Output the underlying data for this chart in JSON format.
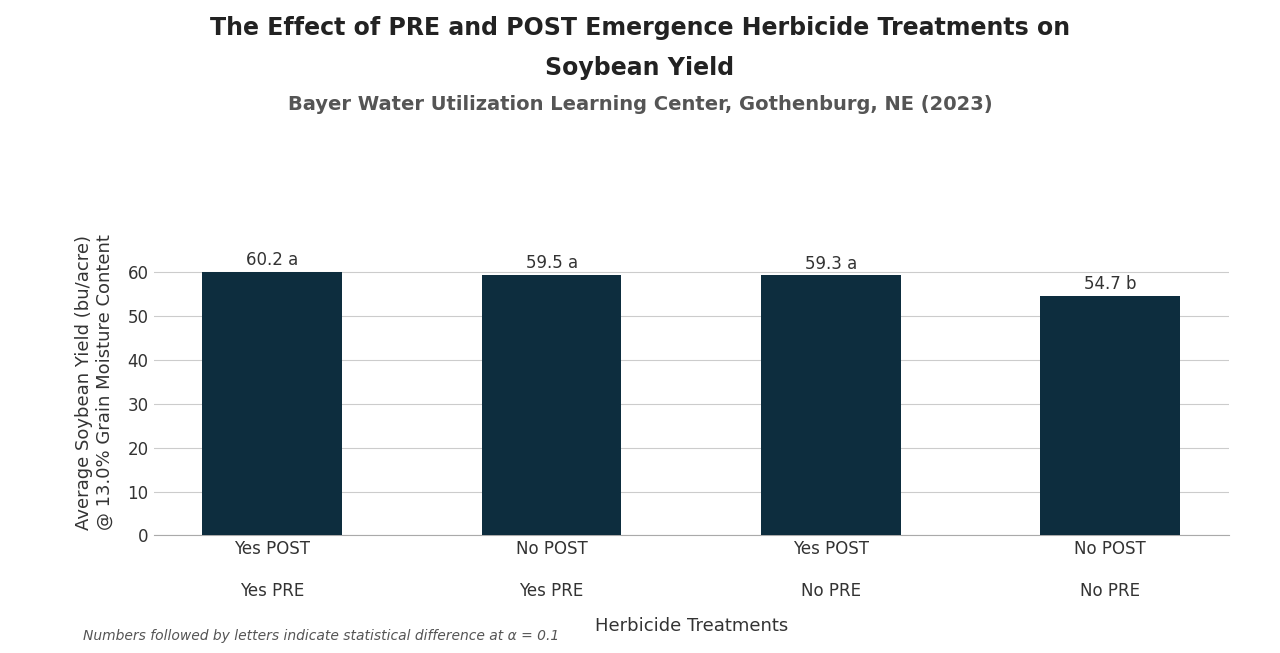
{
  "title_line1": "The Effect of PRE and POST Emergence Herbicide Treatments on",
  "title_line2": "Soybean Yield",
  "subtitle": "Bayer Water Utilization Learning Center, Gothenburg, NE (2023)",
  "categories": [
    "Yes POST\n\nYes PRE",
    "No POST\n\nYes PRE",
    "Yes POST\n\nNo PRE",
    "No POST\n\nNo PRE"
  ],
  "values": [
    60.2,
    59.5,
    59.3,
    54.7
  ],
  "labels": [
    "60.2 a",
    "59.5 a",
    "59.3 a",
    "54.7 b"
  ],
  "bar_color": "#0d2d3e",
  "ylabel": "Average Soybean Yield (bu/acre)\n@ 13.0% Grain Moisture Content",
  "xlabel": "Herbicide Treatments",
  "ylim": [
    0,
    70
  ],
  "yticks": [
    0,
    10,
    20,
    30,
    40,
    50,
    60
  ],
  "footnote": "Numbers followed by letters indicate statistical difference at α = 0.1",
  "background_color": "#ffffff",
  "grid_color": "#cccccc",
  "title_fontsize": 17,
  "subtitle_fontsize": 14,
  "axis_label_fontsize": 13,
  "tick_fontsize": 12,
  "bar_label_fontsize": 12,
  "footnote_fontsize": 10
}
